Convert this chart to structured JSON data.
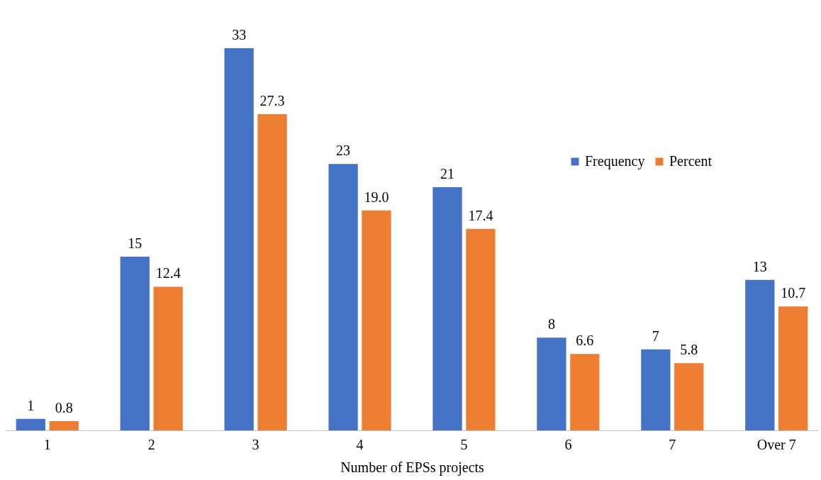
{
  "chart_data": {
    "type": "bar",
    "xlabel": "Number of EPSs projects",
    "categories": [
      "1",
      "2",
      "3",
      "4",
      "5",
      "6",
      "7",
      "Over 7"
    ],
    "series": [
      {
        "name": "Frequency",
        "color": "#4472c4",
        "values": [
          1,
          15,
          33,
          23,
          21,
          8,
          7,
          13
        ],
        "value_labels": [
          "1",
          "15",
          "33",
          "23",
          "21",
          "8",
          "7",
          "13"
        ]
      },
      {
        "name": "Percent",
        "color": "#ed7d31",
        "values": [
          0.8,
          12.4,
          27.3,
          19.0,
          17.4,
          6.6,
          5.8,
          10.7
        ],
        "value_labels": [
          "0.8",
          "12.4",
          "27.3",
          "19.0",
          "17.4",
          "6.6",
          "5.8",
          "10.7"
        ]
      }
    ],
    "legend": "top right",
    "grid": false
  }
}
